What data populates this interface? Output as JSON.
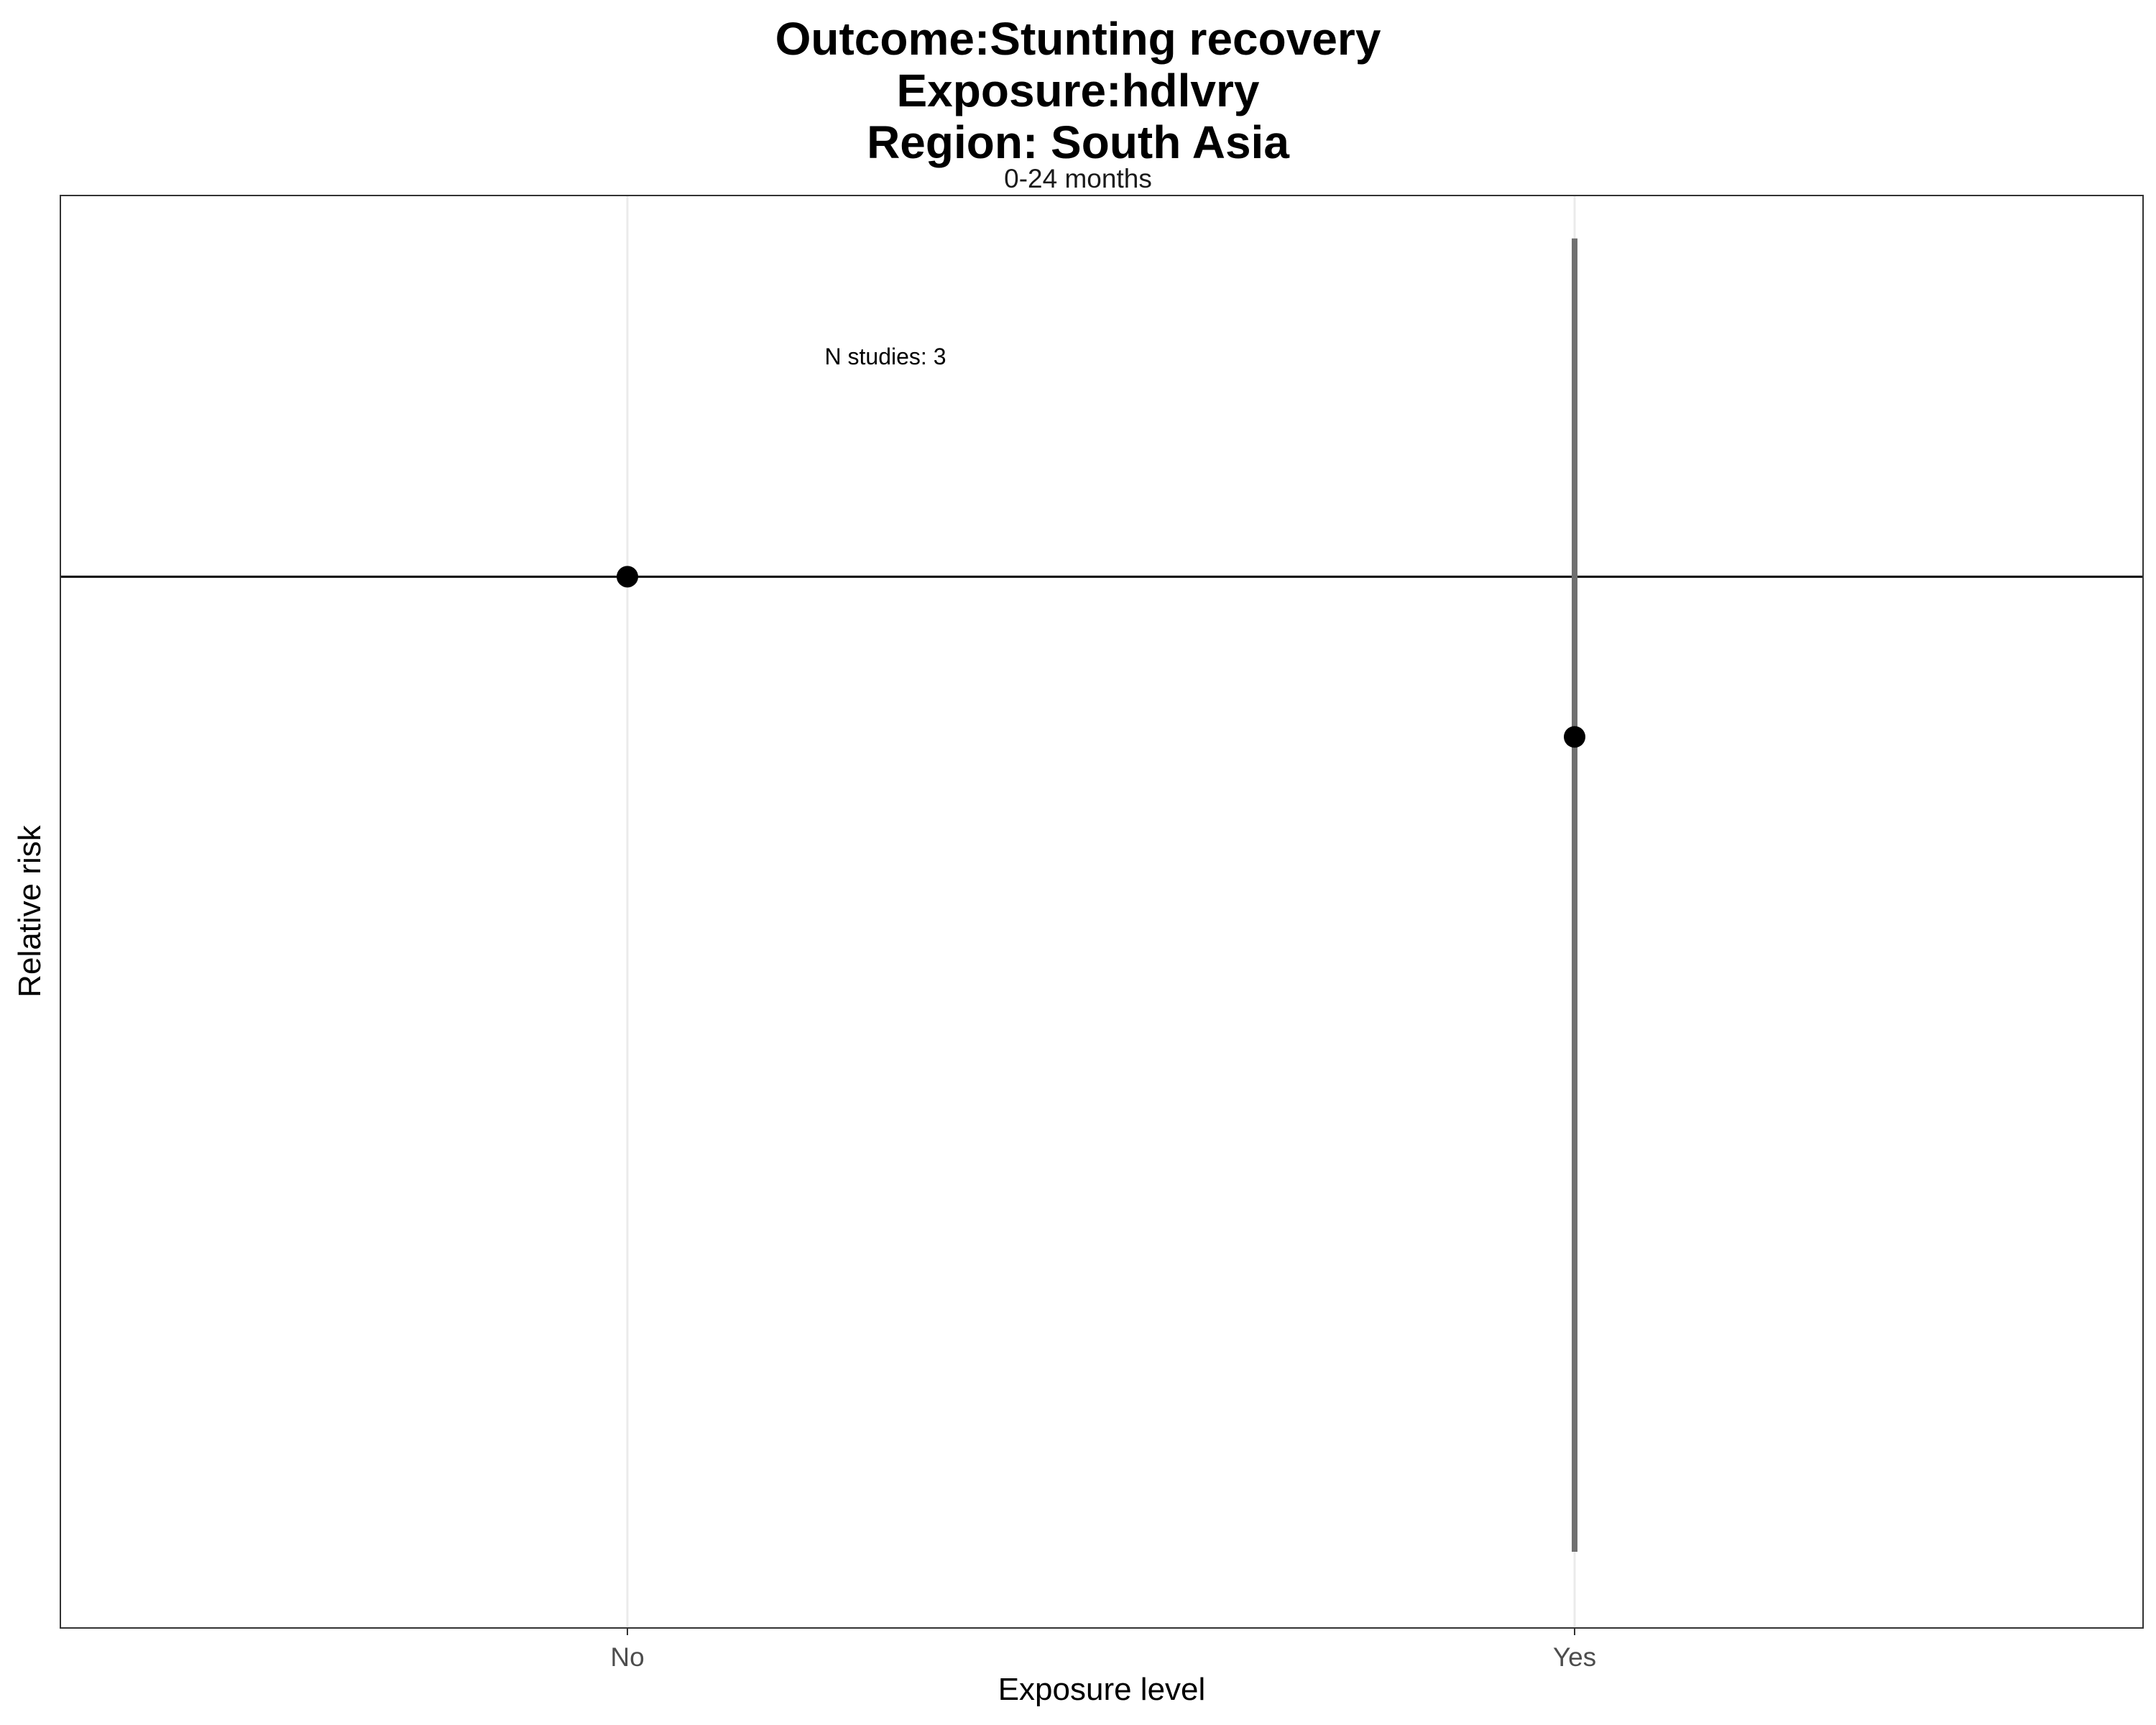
{
  "chart_data": {
    "type": "scatter",
    "title_lines": [
      "Outcome:Stunting recovery",
      "Exposure:hdlvry",
      "Region: South Asia"
    ],
    "facet_label": "0-24 months",
    "xlabel": "Exposure level",
    "ylabel": "Relative risk",
    "categories": [
      "No",
      "Yes"
    ],
    "points": [
      {
        "category": "No",
        "y": 1.0,
        "ci_lower": null,
        "ci_upper": null
      },
      {
        "category": "Yes",
        "y": 0.96,
        "ci_lower": 0.78,
        "ci_upper": 1.09
      }
    ],
    "reference_line": 1,
    "ylim": [
      0.765,
      1.102
    ],
    "y_scale": "log",
    "y_ticks_shown": false,
    "grid": true,
    "annotation": "N studies: 3",
    "colors": {
      "point": "#000000",
      "ci": "#707070",
      "reference": "#000000",
      "grid": "#ebebeb",
      "border": "#333333"
    }
  }
}
